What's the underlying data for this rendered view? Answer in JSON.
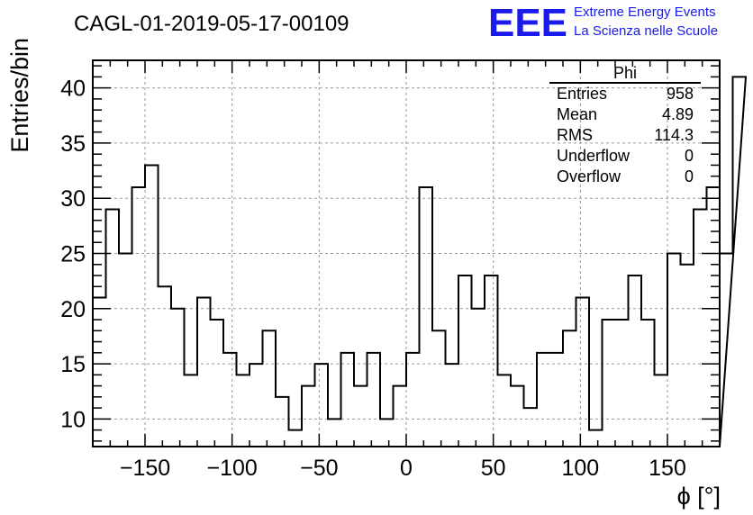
{
  "chart_data": {
    "type": "histogram",
    "title": "CAGL-01-2019-05-17-00109",
    "xlabel": "ϕ [°]",
    "ylabel": "Entries/bin",
    "xlim": [
      -180,
      180
    ],
    "ylim": [
      7.5,
      42.5
    ],
    "x_ticks": [
      -150,
      -100,
      -50,
      0,
      50,
      100,
      150
    ],
    "x_tick_labels": [
      "−150",
      "−100",
      "−50",
      "0",
      "50",
      "100",
      "150"
    ],
    "y_ticks": [
      10,
      15,
      20,
      25,
      30,
      35,
      40
    ],
    "y_tick_labels": [
      "10",
      "15",
      "20",
      "25",
      "30",
      "35",
      "40"
    ],
    "grid": true,
    "bin_width": 7.5,
    "bin_edges_start": -180,
    "values": [
      21,
      29,
      25,
      31,
      33,
      22,
      20,
      14,
      21,
      19,
      16,
      14,
      15,
      18,
      12,
      9,
      13,
      15,
      10,
      16,
      13,
      16,
      10,
      13,
      16,
      31,
      18,
      15,
      23,
      20,
      23,
      14,
      13,
      11,
      16,
      16,
      18,
      21,
      9,
      19,
      19,
      23,
      19,
      14,
      25,
      24,
      29,
      31,
      25,
      41
    ],
    "stats_box": {
      "title": "Phi",
      "rows": [
        {
          "label": "Entries",
          "value": "958"
        },
        {
          "label": "Mean",
          "value": "4.89"
        },
        {
          "label": "RMS",
          "value": "114.3"
        },
        {
          "label": "Underflow",
          "value": "0"
        },
        {
          "label": "Overflow",
          "value": "0"
        }
      ]
    }
  },
  "logo": {
    "mark": "EEE",
    "line1": "Extreme Energy Events",
    "line2": "La Scienza nelle Scuole",
    "color": "#1a1aee"
  },
  "colors": {
    "line": "#000000",
    "grid": "#9a9a9a",
    "background": "#ffffff"
  }
}
